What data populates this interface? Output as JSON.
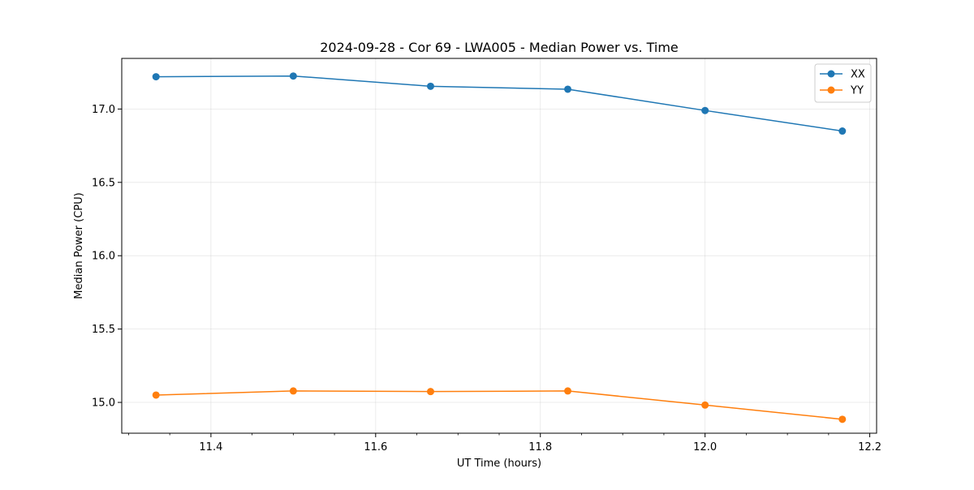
{
  "chart_data": {
    "type": "line",
    "title": "2024-09-28 - Cor 69 - LWA005 - Median Power vs. Time",
    "xlabel": "UT Time (hours)",
    "ylabel": "Median Power (CPU)",
    "x": [
      11.3333,
      11.5,
      11.6667,
      11.8333,
      12.0,
      12.1667
    ],
    "series": [
      {
        "name": "XX",
        "color": "#1f77b4",
        "marker": "circle",
        "values": [
          17.22,
          17.225,
          17.155,
          17.135,
          16.99,
          16.85
        ]
      },
      {
        "name": "YY",
        "color": "#ff7f0e",
        "marker": "circle",
        "values": [
          15.05,
          15.078,
          15.074,
          15.078,
          14.982,
          14.885
        ]
      }
    ],
    "xlim": [
      11.2917,
      12.2083
    ],
    "ylim": [
      14.79,
      17.345
    ],
    "xticks": [
      11.4,
      11.6,
      11.8,
      12.0,
      12.2
    ],
    "xtick_labels": [
      "11.4",
      "11.6",
      "11.8",
      "12.0",
      "12.2"
    ],
    "xminor_step": 0.05,
    "yticks": [
      15.0,
      15.5,
      16.0,
      16.5,
      17.0
    ],
    "ytick_labels": [
      "15.0",
      "15.5",
      "16.0",
      "16.5",
      "17.0"
    ],
    "grid": true,
    "legend_position": "top-right"
  }
}
